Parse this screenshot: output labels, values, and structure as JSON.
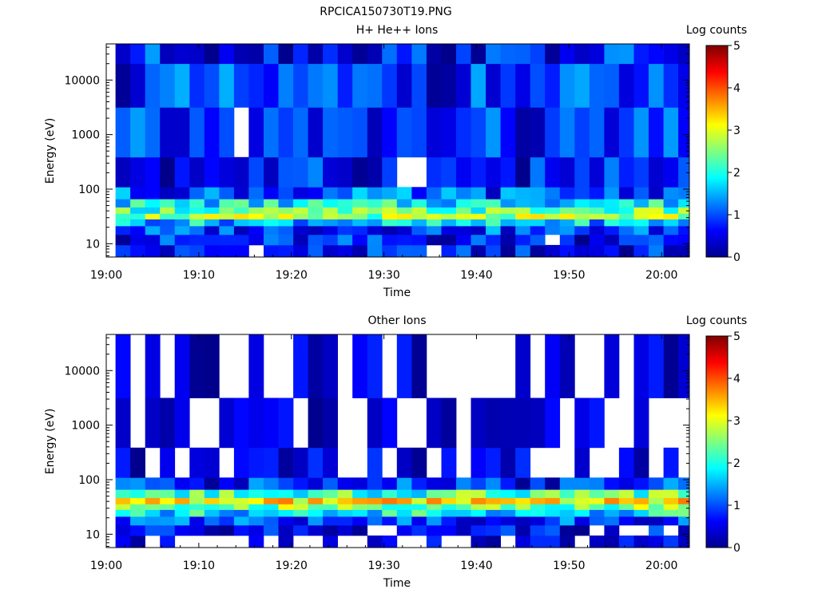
{
  "figure": {
    "title": "RPCICA150730T19.PNG"
  },
  "chart_data": [
    {
      "type": "heatmap",
      "title": "H+ He++ Ions",
      "xlabel": "Time",
      "ylabel": "Energy (eV)",
      "yscale": "log",
      "ylim": [
        5.7,
        46000
      ],
      "xlim_minutes": [
        0,
        63
      ],
      "x_ticks": [
        "19:00",
        "19:10",
        "19:20",
        "19:30",
        "19:40",
        "19:50",
        "20:00"
      ],
      "y_ticks": [
        "10",
        "100",
        "1000",
        "10000"
      ],
      "colorbar": {
        "label": "Log counts",
        "ticks": [
          "0",
          "1",
          "2",
          "3",
          "4",
          "5"
        ],
        "range": [
          0,
          5
        ]
      },
      "columns_start_minute": [
        1.0,
        2.6,
        4.2,
        5.8,
        7.4,
        9.0,
        10.6,
        12.2,
        13.8,
        15.4,
        17.0,
        18.6,
        20.2,
        21.8,
        23.4,
        25.0,
        26.6,
        28.2,
        29.8,
        31.4,
        33.0,
        34.6,
        36.2,
        37.8,
        39.4,
        41.0,
        42.6,
        44.2,
        45.8,
        47.4,
        49.0,
        50.6,
        52.2,
        53.8,
        55.4,
        57.0,
        58.6,
        60.2,
        61.8
      ],
      "energy_band_eV": [
        {
          "energy_eV": 7.5,
          "log_counts_avg": 0.6
        },
        {
          "energy_eV": 12,
          "log_counts_avg": 0.7
        },
        {
          "energy_eV": 18,
          "log_counts_avg": 0.9
        },
        {
          "energy_eV": 25,
          "log_counts_avg": 1.6
        },
        {
          "energy_eV": 32,
          "log_counts_avg": 2.6
        },
        {
          "energy_eV": 40,
          "log_counts_avg": 2.3
        },
        {
          "energy_eV": 55,
          "log_counts_avg": 1.8
        },
        {
          "energy_eV": 80,
          "log_counts_avg": 1.0
        },
        {
          "energy_eV": 150,
          "log_counts_avg": 0.6
        },
        {
          "energy_eV": 1000,
          "log_counts_avg": 0.7
        },
        {
          "energy_eV": 10000,
          "log_counts_avg": 0.8
        },
        {
          "energy_eV": 40000,
          "log_counts_avg": 0.7
        }
      ]
    },
    {
      "type": "heatmap",
      "title": "Other Ions",
      "xlabel": "Time",
      "ylabel": "Energy (eV)",
      "yscale": "log",
      "ylim": [
        5.7,
        46000
      ],
      "xlim_minutes": [
        0,
        63
      ],
      "x_ticks": [
        "19:00",
        "19:10",
        "19:20",
        "19:30",
        "19:40",
        "19:50",
        "20:00"
      ],
      "y_ticks": [
        "10",
        "100",
        "1000",
        "10000"
      ],
      "colorbar": {
        "label": "Log counts",
        "ticks": [
          "0",
          "1",
          "2",
          "3",
          "4",
          "5"
        ],
        "range": [
          0,
          5
        ]
      },
      "energy_band_eV": [
        {
          "energy_eV": 7.5,
          "log_counts_avg": 0.3
        },
        {
          "energy_eV": 12,
          "log_counts_avg": 0.5
        },
        {
          "energy_eV": 18,
          "log_counts_avg": 0.9
        },
        {
          "energy_eV": 25,
          "log_counts_avg": 1.8
        },
        {
          "energy_eV": 32,
          "log_counts_avg": 2.5
        },
        {
          "energy_eV": 40,
          "log_counts_avg": 3.2
        },
        {
          "energy_eV": 55,
          "log_counts_avg": 2.2
        },
        {
          "energy_eV": 80,
          "log_counts_avg": 0.8
        },
        {
          "energy_eV": 150,
          "log_counts_avg": 0.3
        },
        {
          "energy_eV": 1000,
          "log_counts_avg": 0.1
        },
        {
          "energy_eV": 10000,
          "log_counts_avg": 0.1
        }
      ]
    }
  ]
}
